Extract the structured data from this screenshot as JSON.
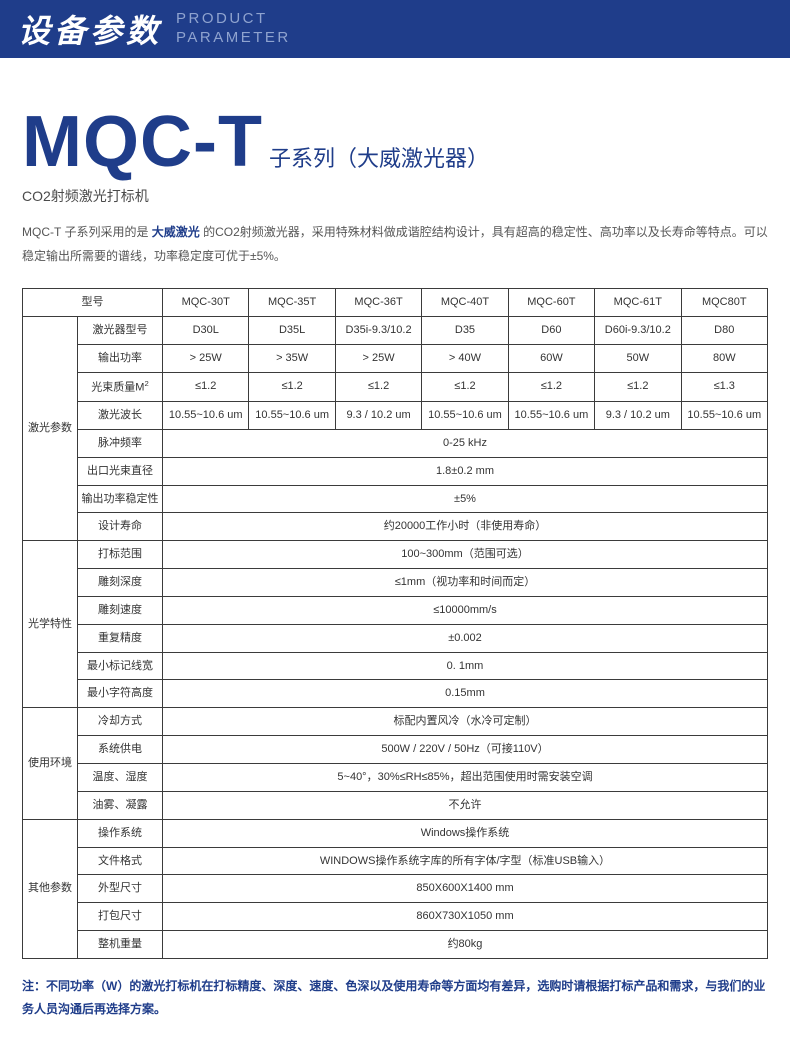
{
  "header": {
    "cn": "设备参数",
    "en1": "PRODUCT",
    "en2": "PARAMETER"
  },
  "title": {
    "model": "MQC-T",
    "series": "子系列（大威激光器）",
    "subtitle": "CO2射频激光打标机"
  },
  "intro_a": "MQC-T 子系列采用的是 ",
  "intro_b": "大威激光",
  "intro_c": " 的CO2射频激光器，采用特殊材料做成谐腔结构设计，具有超高的稳定性、高功率以及长寿命等特点。可以稳定输出所需要的谱线，功率稳定度可优于±5%。",
  "cols_header": "型号",
  "models": [
    "MQC-30T",
    "MQC-35T",
    "MQC-36T",
    "MQC-40T",
    "MQC-60T",
    "MQC-61T",
    "MQC80T"
  ],
  "cat": {
    "laser": "激光参数",
    "optic": "光学特性",
    "env": "使用环境",
    "other": "其他参数"
  },
  "rows": {
    "laser_model": {
      "label": "激光器型号",
      "v": [
        "D30L",
        "D35L",
        "D35i-9.3/10.2",
        "D35",
        "D60",
        "D60i-9.3/10.2",
        "D80"
      ]
    },
    "power_out": {
      "label": "输出功率",
      "v": [
        "> 25W",
        "> 35W",
        "> 25W",
        "> 40W",
        "60W",
        "50W",
        "80W"
      ]
    },
    "beam_q": {
      "label": "光束质量M",
      "sup": "2",
      "v": [
        "≤1.2",
        "≤1.2",
        "≤1.2",
        "≤1.2",
        "≤1.2",
        "≤1.2",
        "≤1.3"
      ]
    },
    "wavelength": {
      "label": "激光波长",
      "v": [
        "10.55~10.6 um",
        "10.55~10.6 um",
        "9.3 / 10.2 um",
        "10.55~10.6 um",
        "10.55~10.6 um",
        "9.3 / 10.2 um",
        "10.55~10.6 um"
      ]
    },
    "pulse": {
      "label": "脉冲频率",
      "span": "0-25 kHz"
    },
    "beam_dia": {
      "label": "出口光束直径",
      "span": "1.8±0.2 mm"
    },
    "stability": {
      "label": "输出功率稳定性",
      "span": "±5%"
    },
    "lifetime": {
      "label": "设计寿命",
      "span": "约20000工作小时（非使用寿命）"
    },
    "mark_range": {
      "label": "打标范围",
      "span": "100~300mm（范围可选）"
    },
    "engrave": {
      "label": "雕刻深度",
      "span": "≤1mm（视功率和时间而定）"
    },
    "speed": {
      "label": "雕刻速度",
      "span": "≤10000mm/s"
    },
    "repeat": {
      "label": "重复精度",
      "span": "±0.002"
    },
    "linewidth": {
      "label": "最小标记线宽",
      "span": "0. 1mm"
    },
    "charheight": {
      "label": "最小字符高度",
      "span": "0.15mm"
    },
    "cooling": {
      "label": "冷却方式",
      "span": "标配内置风冷（水冷可定制）"
    },
    "power_sup": {
      "label": "系统供电",
      "span": "500W / 220V / 50Hz（可接110V）"
    },
    "temp": {
      "label": "温度、湿度",
      "span": "5~40°，30%≤RH≤85%，超出范围使用时需安装空调"
    },
    "mist": {
      "label": "油雾、凝露",
      "span": "不允许"
    },
    "os": {
      "label": "操作系统",
      "span": "Windows操作系统"
    },
    "fileformat": {
      "label": "文件格式",
      "span": "WINDOWS操作系统字库的所有字体/字型（标准USB输入）"
    },
    "size": {
      "label": "外型尺寸",
      "span": "850X600X1400 mm"
    },
    "packsize": {
      "label": "打包尺寸",
      "span": "860X730X1050 mm"
    },
    "weight": {
      "label": "整机重量",
      "span": "约80kg"
    }
  },
  "footnote": "注：不同功率（W）的激光打标机在打标精度、深度、速度、色深以及使用寿命等方面均有差异，选购时请根据打标产品和需求，与我们的业务人员沟通后再选择方案。",
  "colors": {
    "brand": "#1f3d8a",
    "header_sub": "#8fa3cf",
    "border": "#3b3b3b",
    "text": "#333333",
    "muted": "#555555"
  }
}
